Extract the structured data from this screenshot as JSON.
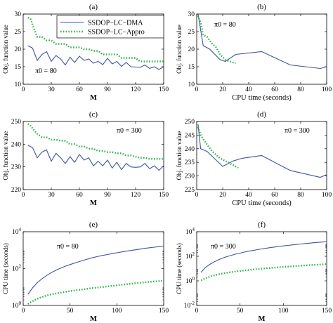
{
  "colors": {
    "dma": "#3b54a6",
    "appro": "#2fb34a",
    "axis": "#000000"
  },
  "chart_data": [
    {
      "id": "a",
      "type": "line",
      "panel_label": "(a)",
      "xlabel": "M",
      "ylabel": "Obj. function value",
      "xlim": [
        0,
        150
      ],
      "ylim": [
        10,
        30
      ],
      "xticks": [
        0,
        30,
        60,
        90,
        120,
        150
      ],
      "yticks": [
        10,
        15,
        20,
        25,
        30
      ],
      "annotation": "π0 = 80",
      "legend": "top-right",
      "series": [
        {
          "name": "SSDOP−LC−DMA",
          "style": "solid",
          "x": [
            5,
            10,
            15,
            20,
            25,
            30,
            35,
            40,
            45,
            50,
            55,
            60,
            65,
            70,
            75,
            80,
            85,
            90,
            95,
            100,
            105,
            110,
            115,
            120,
            125,
            130,
            135,
            140,
            145,
            150
          ],
          "y": [
            21,
            20.3,
            16.8,
            18.5,
            19.3,
            16.5,
            18.2,
            17.2,
            15.5,
            17.7,
            16.2,
            18,
            16.8,
            17.2,
            16,
            16.5,
            15.6,
            17.4,
            15.8,
            16.5,
            15.1,
            16.2,
            15,
            14.9,
            14.8,
            15.5,
            14.5,
            15,
            14.2,
            15
          ]
        },
        {
          "name": "SSDOP−LC−Appro",
          "style": "dotted",
          "x": [
            5,
            8,
            10,
            12,
            15,
            20,
            25,
            30,
            35,
            40,
            45,
            50,
            55,
            60,
            65,
            70,
            75,
            80,
            85,
            90,
            95,
            100,
            105,
            110,
            115,
            120,
            125,
            130,
            135,
            140,
            145,
            150
          ],
          "y": [
            29,
            28.5,
            27,
            25.5,
            23.5,
            23.5,
            22.5,
            22.5,
            21.5,
            21.5,
            21.5,
            20.5,
            20.5,
            20.5,
            20,
            20,
            19.5,
            19.5,
            18.5,
            18.5,
            18.5,
            18.5,
            17.5,
            17.5,
            17.5,
            17.5,
            16.5,
            16.5,
            16.5,
            16.5,
            16.5,
            16.5
          ]
        }
      ]
    },
    {
      "id": "b",
      "type": "line",
      "panel_label": "(b)",
      "xlabel": "CPU time (seconds)",
      "ylabel": "Obj. function value",
      "xlim": [
        0,
        100
      ],
      "ylim": [
        10,
        30
      ],
      "xticks": [
        0,
        20,
        40,
        60,
        80,
        100
      ],
      "yticks": [
        10,
        15,
        20,
        25,
        30
      ],
      "annotation": "π0 = 80",
      "series": [
        {
          "name": "SSDOP−LC−DMA",
          "style": "solid",
          "x": [
            1,
            5,
            10,
            18,
            22,
            30,
            50,
            72,
            95,
            100
          ],
          "y": [
            30,
            21,
            20,
            17,
            16.5,
            18.5,
            19.3,
            15.5,
            14.5,
            15
          ]
        },
        {
          "name": "SSDOP−LC−Appro",
          "style": "dotted",
          "x": [
            1,
            3,
            5,
            8,
            12,
            15,
            18,
            22,
            25,
            30
          ],
          "y": [
            29.5,
            27.5,
            24,
            23.5,
            21.5,
            20.5,
            18.5,
            17,
            16.5,
            16
          ]
        }
      ]
    },
    {
      "id": "c",
      "type": "line",
      "panel_label": "(c)",
      "xlabel": "M",
      "ylabel": "Obj. function value",
      "xlim": [
        0,
        150
      ],
      "ylim": [
        220,
        250
      ],
      "xticks": [
        0,
        30,
        60,
        90,
        120,
        150
      ],
      "yticks": [
        220,
        230,
        240,
        250
      ],
      "annotation": "π0 = 300",
      "series": [
        {
          "name": "SSDOP−LC−DMA",
          "style": "solid",
          "x": [
            5,
            10,
            15,
            20,
            25,
            30,
            35,
            40,
            45,
            50,
            55,
            60,
            65,
            70,
            75,
            80,
            85,
            90,
            95,
            100,
            105,
            110,
            115,
            120,
            125,
            130,
            135,
            140,
            145,
            150
          ],
          "y": [
            239.5,
            238.5,
            234,
            236.5,
            237.5,
            232.5,
            236,
            234,
            231.5,
            234.5,
            232,
            235.5,
            233,
            234,
            230.5,
            232.5,
            230.5,
            233,
            229.5,
            232,
            228.8,
            231.5,
            230,
            229.8,
            230,
            231.5,
            229.2,
            230.5,
            228.5,
            230.5
          ]
        },
        {
          "name": "SSDOP−LC−Appro",
          "style": "dotted",
          "x": [
            5,
            8,
            10,
            15,
            20,
            25,
            30,
            35,
            40,
            45,
            50,
            55,
            60,
            65,
            70,
            75,
            80,
            85,
            90,
            95,
            100,
            105,
            110,
            115,
            120,
            125,
            130,
            135,
            140,
            145,
            150
          ],
          "y": [
            249,
            248,
            247,
            244.5,
            243,
            243,
            242,
            242,
            241.5,
            241.5,
            240,
            240,
            239,
            239,
            238,
            238,
            237,
            237,
            236.5,
            236.5,
            236,
            236,
            235,
            235,
            234.5,
            234,
            234,
            233.5,
            233.5,
            233.5,
            233.5
          ]
        }
      ]
    },
    {
      "id": "d",
      "type": "line",
      "panel_label": "(d)",
      "xlabel": "CPU time (seconds)",
      "ylabel": "Obj. function value",
      "xlim": [
        0,
        100
      ],
      "ylim": [
        225,
        250
      ],
      "xticks": [
        0,
        20,
        40,
        60,
        80,
        100
      ],
      "yticks": [
        225,
        230,
        235,
        240,
        245,
        250
      ],
      "annotation": "π0 = 300",
      "series": [
        {
          "name": "SSDOP−LC−DMA",
          "style": "solid",
          "x": [
            1,
            3,
            8,
            20,
            28,
            35,
            50,
            72,
            95,
            100
          ],
          "y": [
            249,
            240,
            239,
            233.5,
            235.5,
            236.5,
            237.5,
            232,
            229.5,
            230.5
          ]
        },
        {
          "name": "SSDOP−LC−Appro",
          "style": "dotted",
          "x": [
            1,
            3,
            5,
            8,
            12,
            18,
            22,
            28,
            32
          ],
          "y": [
            248,
            245,
            243.5,
            241.5,
            239,
            236.5,
            235.5,
            234,
            233
          ]
        }
      ]
    },
    {
      "id": "e",
      "type": "line",
      "panel_label": "(e)",
      "xlabel": "M",
      "ylabel": "CPU time (seconds)",
      "xlim": [
        0,
        150
      ],
      "ylim": [
        1,
        10000
      ],
      "yscale": "log",
      "xticks": [
        0,
        50,
        100,
        150
      ],
      "yticks": [
        {
          "value": 1,
          "base": "10",
          "exp": "0"
        },
        {
          "value": 100,
          "base": "10",
          "exp": "2"
        },
        {
          "value": 10000,
          "base": "10",
          "exp": "4"
        }
      ],
      "annotation": "π0 = 80",
      "series": [
        {
          "name": "SSDOP−LC−DMA",
          "style": "solid",
          "x": [
            5,
            10,
            15,
            20,
            25,
            30,
            35,
            40,
            45,
            50,
            55,
            60,
            65,
            70,
            75,
            80,
            85,
            90,
            95,
            100,
            105,
            110,
            115,
            120,
            125,
            130,
            135,
            140,
            145,
            150
          ],
          "y": [
            4,
            9,
            17,
            28,
            42,
            60,
            82,
            105,
            135,
            165,
            200,
            240,
            290,
            340,
            400,
            460,
            520,
            580,
            650,
            720,
            800,
            880,
            960,
            1050,
            1150,
            1250,
            1350,
            1450,
            1550,
            1650
          ]
        },
        {
          "name": "SSDOP−LC−Appro",
          "style": "dotted",
          "x": [
            5,
            10,
            15,
            20,
            25,
            30,
            35,
            40,
            45,
            50,
            55,
            60,
            65,
            70,
            75,
            80,
            85,
            90,
            95,
            100,
            105,
            110,
            115,
            120,
            125,
            130,
            135,
            140,
            145,
            150
          ],
          "y": [
            1.2,
            1.7,
            2.3,
            2.9,
            3.4,
            4,
            4.5,
            5,
            5.5,
            6,
            6.5,
            7,
            7.6,
            8.2,
            8.8,
            9.4,
            10,
            10.8,
            11.6,
            12.4,
            13.2,
            14,
            15,
            16,
            17,
            18,
            19,
            20,
            21,
            22
          ]
        }
      ]
    },
    {
      "id": "f",
      "type": "line",
      "panel_label": "(f)",
      "xlabel": "M",
      "ylabel": "CPU time (seconds)",
      "xlim": [
        0,
        150
      ],
      "ylim": [
        0.01,
        10000
      ],
      "yscale": "log",
      "xticks": [
        0,
        50,
        100,
        150
      ],
      "yticks": [
        {
          "value": 0.01,
          "base": "10",
          "exp": "-2"
        },
        {
          "value": 1,
          "base": "10",
          "exp": "0"
        },
        {
          "value": 100,
          "base": "10",
          "exp": "2"
        },
        {
          "value": 10000,
          "base": "10",
          "exp": "4"
        }
      ],
      "annotation": "π0 = 300",
      "series": [
        {
          "name": "SSDOP−LC−DMA",
          "style": "solid",
          "x": [
            5,
            10,
            15,
            20,
            25,
            30,
            35,
            40,
            45,
            50,
            55,
            60,
            65,
            70,
            75,
            80,
            85,
            90,
            95,
            100,
            105,
            110,
            115,
            120,
            125,
            130,
            135,
            140,
            145,
            150
          ],
          "y": [
            5,
            12,
            22,
            35,
            52,
            72,
            95,
            120,
            150,
            180,
            220,
            260,
            300,
            350,
            400,
            450,
            510,
            570,
            630,
            700,
            770,
            840,
            920,
            1000,
            1080,
            1170,
            1260,
            1350,
            1450,
            1550
          ]
        },
        {
          "name": "SSDOP−LC−Appro",
          "style": "dotted",
          "x": [
            5,
            10,
            15,
            20,
            25,
            30,
            35,
            40,
            45,
            50,
            55,
            60,
            65,
            70,
            75,
            80,
            85,
            90,
            95,
            100,
            105,
            110,
            115,
            120,
            125,
            130,
            135,
            140,
            145,
            150
          ],
          "y": [
            1.1,
            1.6,
            2.2,
            2.8,
            3.4,
            4,
            4.6,
            5.2,
            5.8,
            6.4,
            7,
            7.7,
            8.4,
            9.1,
            9.8,
            10.5,
            11.3,
            12.1,
            12.9,
            13.7,
            14.5,
            15.4,
            16.3,
            17.2,
            18.1,
            19,
            20,
            21,
            22,
            23
          ]
        }
      ]
    }
  ]
}
